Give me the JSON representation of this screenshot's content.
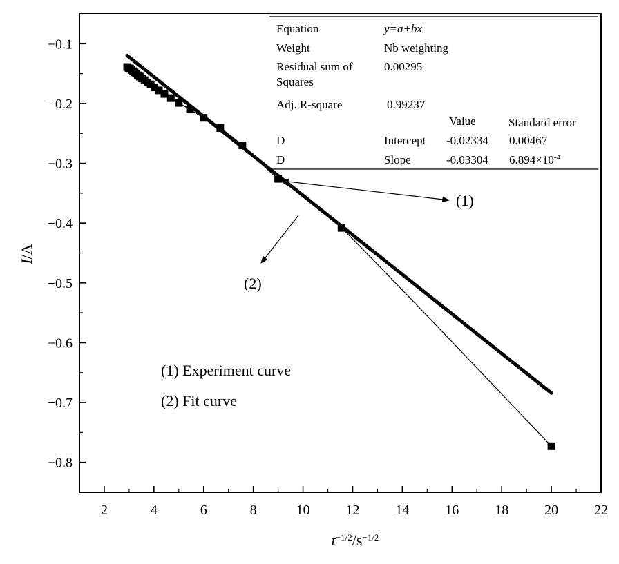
{
  "chart_data": {
    "type": "scatter",
    "x_range": [
      1,
      22
    ],
    "y_range": [
      -0.85,
      -0.05
    ],
    "x_ticks": [
      2,
      4,
      6,
      8,
      10,
      12,
      14,
      16,
      18,
      20,
      22
    ],
    "y_ticks": [
      -0.1,
      -0.2,
      -0.3,
      -0.4,
      -0.5,
      -0.6,
      -0.7,
      -0.8
    ],
    "x_tick_labels": [
      "2",
      "4",
      "6",
      "8",
      "10",
      "12",
      "14",
      "16",
      "18",
      "20",
      "22"
    ],
    "y_tick_labels": [
      "−0.1",
      "−0.2",
      "−0.3",
      "−0.4",
      "−0.5",
      "−0.6",
      "−0.7",
      "−0.8"
    ],
    "xlabel": {
      "symbol": "t",
      "sup1": "−1/2",
      "mid": "/s",
      "sup2": "−1/2"
    },
    "ylabel": {
      "symbol": "I",
      "rest": "/A"
    },
    "grid": false,
    "series": [
      {
        "name": "(1) Experiment curve",
        "style": "markers-with-thin-line",
        "color": "#000000",
        "x": [
          2.92,
          2.98,
          3.04,
          3.1,
          3.16,
          3.22,
          3.28,
          3.35,
          3.43,
          3.52,
          3.62,
          3.74,
          3.87,
          4.02,
          4.2,
          4.42,
          4.68,
          5.0,
          5.45,
          6.0,
          6.67,
          7.56,
          9.0,
          11.55,
          20.0
        ],
        "y": [
          -0.139,
          -0.141,
          -0.142,
          -0.144,
          -0.146,
          -0.148,
          -0.15,
          -0.153,
          -0.155,
          -0.158,
          -0.161,
          -0.165,
          -0.168,
          -0.173,
          -0.178,
          -0.184,
          -0.191,
          -0.199,
          -0.21,
          -0.224,
          -0.241,
          -0.27,
          -0.326,
          -0.408,
          -0.773
        ]
      },
      {
        "name": "(2) Fit curve",
        "style": "thick-line",
        "color": "#000000",
        "intercept": -0.02334,
        "slope": -0.03304,
        "x_start": 2.92,
        "x_end": 20.0
      }
    ],
    "stats_table": {
      "equation_label": "Equation",
      "equation_value": "y=a+bx",
      "weight_label": "Weight",
      "weight_value": "Nb weighting",
      "rss_label_1": "Residual sum of",
      "rss_label_2": "Squares",
      "rss_value": "0.00295",
      "r2_label": "Adj. R-square",
      "r2_value": "0.99237",
      "col_value": "Value",
      "col_stderr": "Standard error",
      "row1_series": "D",
      "row1_param": "Intercept",
      "row1_value": "-0.02334",
      "row1_stderr": "0.00467",
      "row2_series": "D",
      "row2_param": "Slope",
      "row2_value": "-0.03304",
      "row2_stderr_mantissa": "6.894",
      "row2_stderr_exp": "-4"
    },
    "annotations": {
      "label1": "(1)",
      "label2": "(2)",
      "legend_line1": "(1) Experiment curve",
      "legend_line2": "(2) Fit curve"
    }
  }
}
